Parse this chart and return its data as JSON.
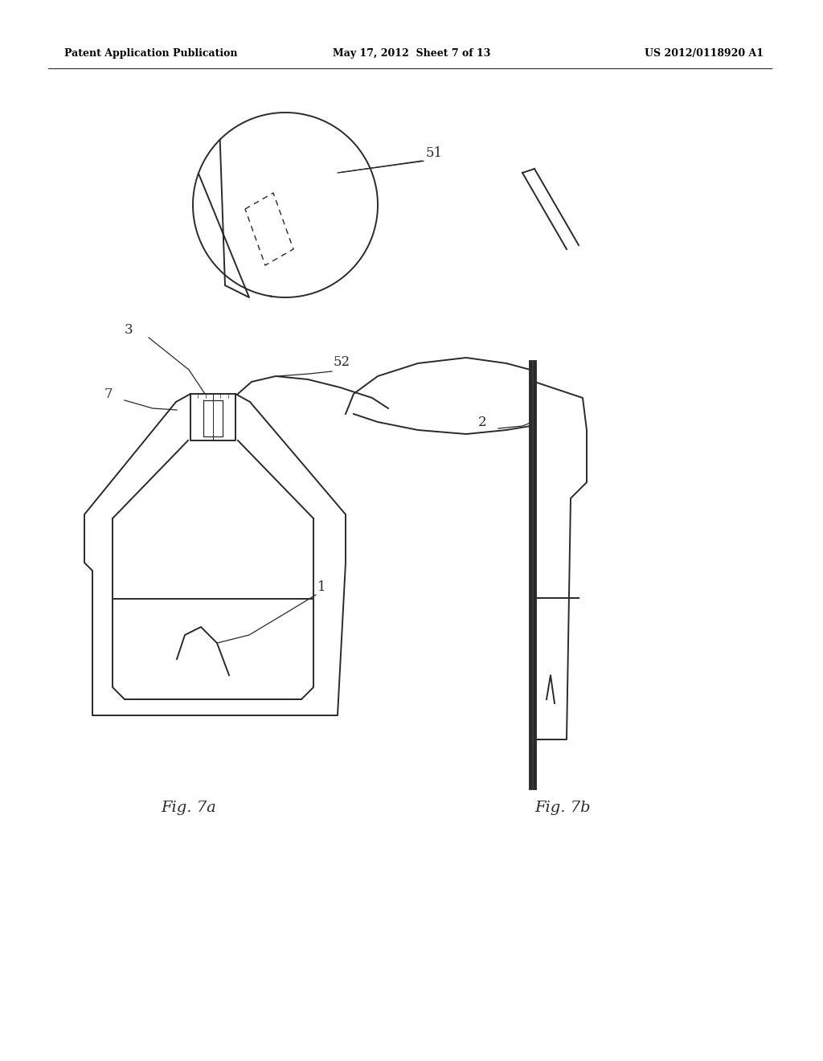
{
  "bg_color": "#ffffff",
  "line_color": "#2a2a2a",
  "header_left": "Patent Application Publication",
  "header_mid": "May 17, 2012  Sheet 7 of 13",
  "header_right": "US 2012/0118920 A1",
  "fig7a_label": "Fig. 7a",
  "fig7b_label": "Fig. 7b"
}
